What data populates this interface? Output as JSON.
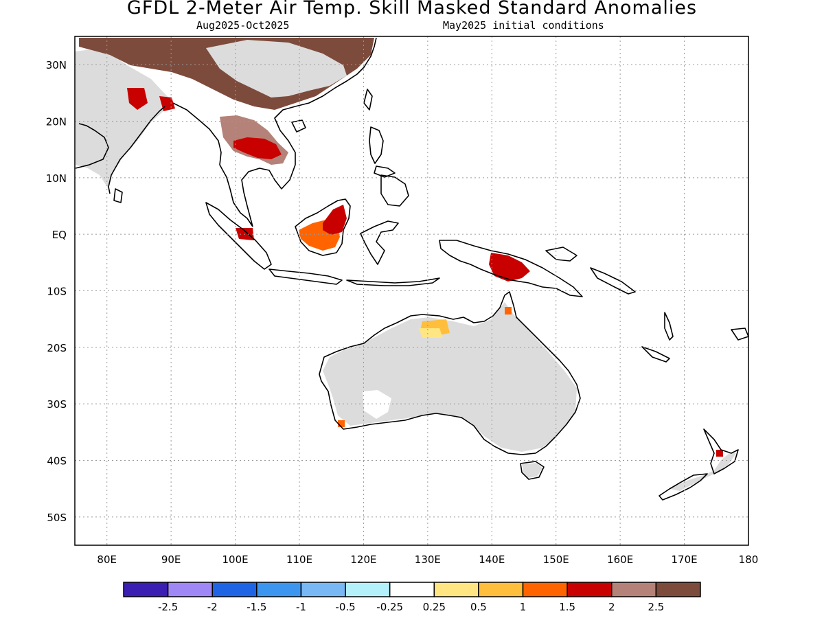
{
  "header": {
    "title": "GFDL 2-Meter Air Temp. Skill Masked Standard Anomalies",
    "subtitle_left": "Aug2025-Oct2025",
    "subtitle_right": "May2025 initial conditions"
  },
  "map": {
    "lon_range": [
      75,
      180
    ],
    "lat_range": [
      -55,
      35
    ],
    "lon_ticks": [
      "80E",
      "90E",
      "100E",
      "110E",
      "120E",
      "130E",
      "140E",
      "150E",
      "160E",
      "170E",
      "180"
    ],
    "lat_ticks": [
      "30N",
      "20N",
      "10N",
      "EQ",
      "10S",
      "20S",
      "30S",
      "40S",
      "50S"
    ],
    "masked_color": "#dcdcdc",
    "coast_color": "#000000"
  },
  "colorbar": {
    "colors": [
      "#3b1fb2",
      "#9f87f5",
      "#1e64e5",
      "#3c96f0",
      "#78b9f5",
      "#b4f0fa",
      "#ffffff",
      "#ffe682",
      "#ffbe3c",
      "#ff6400",
      "#c80000",
      "#b48278",
      "#7d4b3c"
    ],
    "labels": [
      "-2.5",
      "-2",
      "-1.5",
      "-1",
      "-0.5",
      "-0.25",
      "0.25",
      "0.5",
      "1",
      "1.5",
      "2",
      "2.5"
    ]
  },
  "regions": [
    {
      "name": "south-asia-warm-anomaly",
      "color": "#c80000"
    },
    {
      "name": "indochina-warm-anomaly",
      "color": "#c80000"
    },
    {
      "name": "borneo-warm-anomaly",
      "color": "#ff6400"
    },
    {
      "name": "new-guinea-warm-anomaly",
      "color": "#c80000"
    },
    {
      "name": "north-australia-warm-anomaly",
      "color": "#ffbe3c"
    },
    {
      "name": "tibet-china-strong-warm-anomaly",
      "color": "#7d4b3c"
    }
  ]
}
